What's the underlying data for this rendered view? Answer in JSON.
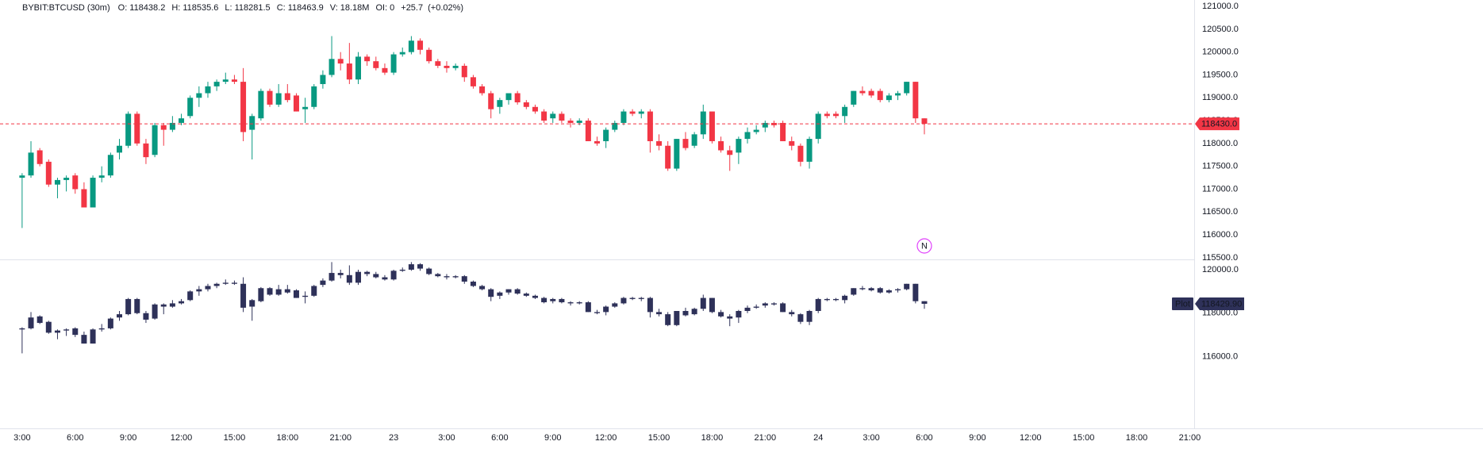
{
  "chart_data": [
    {
      "type": "candlestick",
      "symbol": "BYBIT:BTCUSD (30m)",
      "header": [
        {
          "key": "O:",
          "value": "118438.2"
        },
        {
          "key": "H:",
          "value": "118535.6"
        },
        {
          "key": "L:",
          "value": "118281.5"
        },
        {
          "key": "C:",
          "value": "118463.9"
        },
        {
          "key": "V:",
          "value": "18.18M"
        },
        {
          "key": "OI:",
          "value": "0"
        }
      ],
      "change": "+25.7",
      "change_pct": "(+0.02%)",
      "up_color": "#089981",
      "down_color": "#f23645",
      "open": [
        117250,
        117300,
        117850,
        117600,
        117100,
        117200,
        117300,
        117000,
        116600,
        117250,
        117300,
        117800,
        117950,
        118650,
        118000,
        117750,
        118400,
        118300,
        118450,
        118600,
        119000,
        119100,
        119250,
        119350,
        119400,
        119350,
        118300,
        118550,
        119150,
        118850,
        119100,
        119050,
        118750,
        118800,
        119300,
        119500,
        119850,
        119750,
        119400,
        119900,
        119800,
        119650,
        119550,
        119950,
        120000,
        120250,
        120050,
        119800,
        119700,
        119650,
        119700,
        119450,
        119250,
        119100,
        118800,
        118950,
        119100,
        118900,
        118800,
        118700,
        118550,
        118650,
        118500,
        118450,
        118500,
        118050,
        118050,
        118300,
        118450,
        118700,
        118650,
        118700,
        118050,
        117950,
        117450,
        118100,
        117950,
        118200,
        118700,
        118050,
        117850,
        117800,
        118100,
        118250,
        118350,
        118450,
        118450,
        118050,
        117950,
        117600,
        118100,
        118650,
        118650,
        118600,
        118850,
        119150,
        119150,
        119150,
        118950,
        119050,
        119100,
        119350,
        118550
      ],
      "high": [
        117350,
        118050,
        117900,
        117650,
        117250,
        117300,
        117350,
        117150,
        117300,
        117500,
        117800,
        118100,
        118700,
        118700,
        118100,
        118450,
        118450,
        118600,
        118650,
        119050,
        119250,
        119350,
        119400,
        119550,
        119500,
        119650,
        118650,
        119200,
        119200,
        119300,
        119300,
        119100,
        119000,
        119300,
        119600,
        120350,
        120000,
        120200,
        120000,
        119950,
        119900,
        119750,
        120000,
        120100,
        120350,
        120300,
        120100,
        119850,
        119800,
        119750,
        119750,
        119500,
        119300,
        119150,
        119000,
        119100,
        119150,
        118950,
        118850,
        118750,
        118700,
        118700,
        118550,
        118550,
        118550,
        118150,
        118350,
        118500,
        118750,
        118750,
        118750,
        118750,
        118200,
        118050,
        118100,
        118250,
        118250,
        118850,
        118700,
        118150,
        117950,
        118150,
        118350,
        118400,
        118500,
        118500,
        118500,
        118150,
        118000,
        118150,
        118700,
        118700,
        118700,
        118850,
        119150,
        119250,
        119200,
        119200,
        119100,
        119150,
        119350,
        119350,
        118550
      ],
      "low": [
        116150,
        117250,
        117500,
        117050,
        116800,
        116950,
        116900,
        116600,
        116600,
        117150,
        117250,
        117650,
        117900,
        117950,
        117550,
        117700,
        117950,
        118250,
        118400,
        118550,
        118800,
        119000,
        119150,
        119300,
        119300,
        118050,
        117650,
        118500,
        118800,
        118800,
        118900,
        118700,
        118450,
        118750,
        119200,
        119450,
        119600,
        119300,
        119300,
        119700,
        119600,
        119500,
        119500,
        119900,
        119950,
        119950,
        119750,
        119650,
        119550,
        119600,
        119350,
        119200,
        119050,
        118550,
        118650,
        118850,
        118850,
        118750,
        118650,
        118450,
        118450,
        118450,
        118350,
        118400,
        118050,
        117950,
        117900,
        118250,
        118400,
        118600,
        118550,
        117800,
        117850,
        117400,
        117400,
        117850,
        117900,
        118100,
        118000,
        117800,
        117400,
        117550,
        118000,
        118200,
        118250,
        118350,
        118050,
        117850,
        117500,
        117450,
        118000,
        118550,
        118550,
        118450,
        118800,
        119050,
        119000,
        118900,
        118900,
        118950,
        119050,
        118450,
        118200
      ],
      "close": [
        117300,
        117800,
        117550,
        117100,
        117200,
        117250,
        117000,
        116600,
        117250,
        117300,
        117750,
        117950,
        118650,
        118000,
        117700,
        118400,
        118300,
        118450,
        118550,
        119000,
        119100,
        119250,
        119350,
        119400,
        119350,
        118250,
        118600,
        119150,
        118850,
        119100,
        118950,
        118700,
        118800,
        119250,
        119500,
        119850,
        119750,
        119400,
        119900,
        119800,
        119650,
        119550,
        119950,
        120000,
        120250,
        120050,
        119800,
        119700,
        119650,
        119700,
        119450,
        119250,
        119100,
        118750,
        118950,
        119100,
        118900,
        118800,
        118700,
        118500,
        118650,
        118500,
        118450,
        118500,
        118050,
        118000,
        118300,
        118450,
        118700,
        118650,
        118700,
        118050,
        117950,
        117450,
        118100,
        117900,
        118200,
        118700,
        118050,
        117850,
        117750,
        118100,
        118250,
        118300,
        118450,
        118400,
        118050,
        117950,
        117600,
        118100,
        118650,
        118600,
        118600,
        118800,
        119150,
        119100,
        119050,
        118950,
        119050,
        119100,
        119350,
        118550,
        118430
      ],
      "xlim": [
        -2.5,
        132.5
      ],
      "xticks": [
        {
          "value": 0,
          "label": "3:00"
        },
        {
          "value": 6,
          "label": "6:00"
        },
        {
          "value": 12,
          "label": "9:00"
        },
        {
          "value": 18,
          "label": "12:00"
        },
        {
          "value": 24,
          "label": "15:00"
        },
        {
          "value": 30,
          "label": "18:00"
        },
        {
          "value": 36,
          "label": "21:00"
        },
        {
          "value": 42,
          "label": "23"
        },
        {
          "value": 48,
          "label": "3:00"
        },
        {
          "value": 54,
          "label": "6:00"
        },
        {
          "value": 60,
          "label": "9:00"
        },
        {
          "value": 66,
          "label": "12:00"
        },
        {
          "value": 72,
          "label": "15:00"
        },
        {
          "value": 78,
          "label": "18:00"
        },
        {
          "value": 84,
          "label": "21:00"
        },
        {
          "value": 90,
          "label": "24"
        },
        {
          "value": 96,
          "label": "3:00"
        },
        {
          "value": 102,
          "label": "6:00"
        },
        {
          "value": 108,
          "label": "9:00"
        },
        {
          "value": 114,
          "label": "12:00"
        },
        {
          "value": 120,
          "label": "15:00"
        },
        {
          "value": 126,
          "label": "18:00"
        },
        {
          "value": 132,
          "label": "21:00"
        }
      ],
      "ylim": [
        115480,
        121140
      ],
      "yticks": [
        {
          "value": 115500,
          "label": "115500.0"
        },
        {
          "value": 116000,
          "label": "116000.0"
        },
        {
          "value": 116500,
          "label": "116500.0"
        },
        {
          "value": 117000,
          "label": "117000.0"
        },
        {
          "value": 117500,
          "label": "117500.0"
        },
        {
          "value": 118000,
          "label": "118000.0"
        },
        {
          "value": 118500,
          "label": "118500.0"
        },
        {
          "value": 119000,
          "label": "119000.0"
        },
        {
          "value": 119500,
          "label": "119500.0"
        },
        {
          "value": 120000,
          "label": "120000.0"
        },
        {
          "value": 120500,
          "label": "120500.0"
        },
        {
          "value": 121000,
          "label": "121000.0"
        }
      ],
      "last_price": 118430,
      "last_price_label": "118430.0",
      "marker": "N"
    },
    {
      "type": "candlestick",
      "name": "Plot",
      "last_value_label": "118429.90",
      "color": "#2e3159",
      "ylim": [
        112770,
        120400
      ],
      "yticks": [
        {
          "value": 116000,
          "label": "116000.0"
        },
        {
          "value": 118000,
          "label": "118000.0"
        },
        {
          "value": 120000,
          "label": "120000.0"
        }
      ]
    }
  ]
}
